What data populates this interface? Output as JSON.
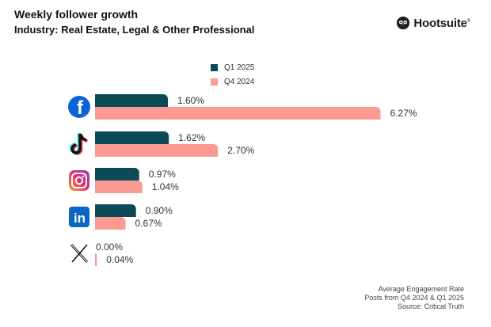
{
  "header": {
    "title": "Weekly follower growth",
    "subtitle": "Industry: Real Estate, Legal & Other Professional",
    "brand": "Hootsuite",
    "brand_mark": "®"
  },
  "colors": {
    "q1_2025": "#0d4a57",
    "q4_2024": "#fb9a92"
  },
  "chart_data": {
    "type": "bar",
    "orientation": "horizontal",
    "categories": [
      "Facebook",
      "TikTok",
      "Instagram",
      "LinkedIn",
      "X"
    ],
    "category_icons": [
      "facebook-icon",
      "tiktok-icon",
      "instagram-icon",
      "linkedin-icon",
      "x-icon"
    ],
    "series": [
      {
        "name": "Q1 2025",
        "values": [
          1.6,
          1.62,
          0.97,
          0.9,
          0.0
        ],
        "labels": [
          "1.60%",
          "1.62%",
          "0.97%",
          "0.90%",
          "0.00%"
        ]
      },
      {
        "name": "Q4 2024",
        "values": [
          6.27,
          2.7,
          1.04,
          0.67,
          0.04
        ],
        "labels": [
          "6.27%",
          "2.70%",
          "1.04%",
          "0.67%",
          "0.04%"
        ]
      }
    ],
    "xlim": [
      0,
      6.27
    ],
    "legend_position": "top",
    "grid": false
  },
  "footer": {
    "line1": "Average Engagement Rate",
    "line2": "Posts from Q4 2024 & Q1 2025",
    "line3": "Source: Critical Truth"
  }
}
